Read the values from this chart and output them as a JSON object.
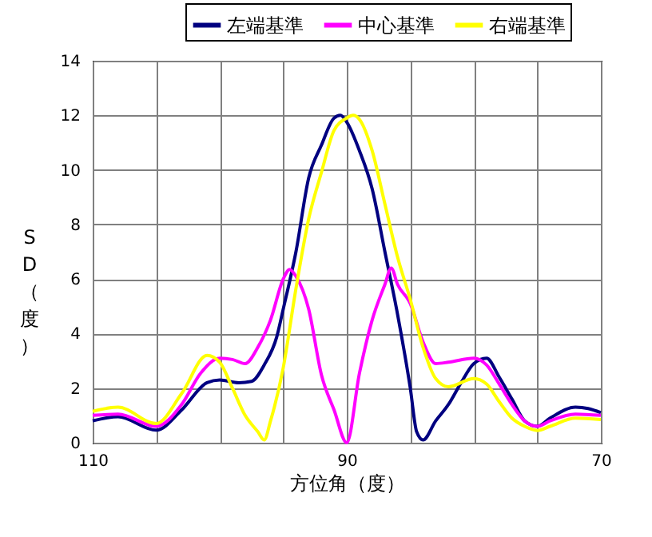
{
  "chart_data": {
    "type": "line",
    "xlabel": "方位角（度）",
    "ylabel": "SD（度）",
    "xlim": [
      110,
      70
    ],
    "ylim": [
      0,
      14
    ],
    "xticks": [
      110,
      {
        "value": 105,
        "label": null
      },
      {
        "value": 100,
        "label": null
      },
      {
        "value": 95,
        "label": null
      },
      90,
      {
        "value": 85,
        "label": null
      },
      {
        "value": 80,
        "label": null
      },
      {
        "value": 75,
        "label": null
      },
      70
    ],
    "yticks": [
      0,
      2,
      4,
      6,
      8,
      10,
      12,
      14
    ],
    "grid": true,
    "legend": "top",
    "marker": "none",
    "line_style": "solid",
    "series": [
      {
        "name": "左端基準",
        "color": "#000080",
        "x": [
          110,
          108,
          105,
          103,
          101,
          100,
          98.5,
          97.5,
          96.5,
          95.5,
          95,
          94,
          93,
          92,
          91,
          90.5,
          90,
          89,
          88,
          87,
          86,
          85,
          84.5,
          84,
          83,
          82,
          81,
          80,
          79,
          78,
          77,
          76,
          75,
          74,
          72,
          71,
          70
        ],
        "values": [
          0.8,
          0.95,
          0.46,
          1.2,
          2.2,
          2.3,
          2.2,
          2.25,
          2.85,
          3.9,
          4.9,
          7.0,
          9.7,
          10.9,
          11.9,
          12.0,
          11.75,
          10.7,
          9.3,
          7.0,
          4.7,
          2.0,
          0.4,
          0.1,
          0.8,
          1.4,
          2.2,
          2.9,
          3.1,
          2.4,
          1.6,
          0.8,
          0.6,
          0.9,
          1.3,
          1.25,
          1.1
        ]
      },
      {
        "name": "中心基準",
        "color": "#ff00ff",
        "x": [
          110,
          108,
          105,
          103,
          101.5,
          100,
          99,
          98,
          97,
          96,
          95,
          94.5,
          94,
          93,
          92,
          91,
          90,
          89,
          88,
          87,
          86.5,
          86,
          85,
          84,
          83,
          82,
          80,
          79,
          78,
          77,
          76,
          75,
          74,
          72,
          70
        ],
        "values": [
          1.0,
          1.05,
          0.6,
          1.4,
          2.55,
          3.1,
          3.05,
          2.9,
          3.5,
          4.5,
          6.0,
          6.35,
          6.1,
          4.9,
          2.5,
          1.2,
          0,
          2.55,
          4.5,
          5.8,
          6.4,
          5.8,
          5.1,
          3.7,
          2.9,
          2.95,
          3.1,
          2.85,
          2.15,
          1.4,
          0.8,
          0.6,
          0.8,
          1.05,
          1.0
        ]
      },
      {
        "name": "右端基準",
        "color": "#ffff00",
        "x": [
          110,
          108,
          105,
          103,
          101,
          100,
          99,
          98,
          97,
          96.5,
          96,
          95,
          94,
          93,
          92,
          91,
          90,
          89.5,
          89,
          88,
          87,
          86,
          85,
          84,
          83,
          82,
          80,
          79,
          78,
          77,
          76,
          75,
          74,
          72,
          70
        ],
        "values": [
          1.15,
          1.3,
          0.7,
          1.8,
          3.2,
          2.95,
          2.0,
          1.0,
          0.4,
          0.1,
          0.8,
          2.75,
          5.65,
          8.2,
          9.9,
          11.45,
          11.9,
          12.0,
          11.85,
          10.7,
          8.75,
          6.8,
          5.25,
          3.5,
          2.35,
          2.05,
          2.35,
          2.15,
          1.5,
          0.9,
          0.6,
          0.45,
          0.6,
          0.9,
          0.85
        ]
      }
    ]
  }
}
